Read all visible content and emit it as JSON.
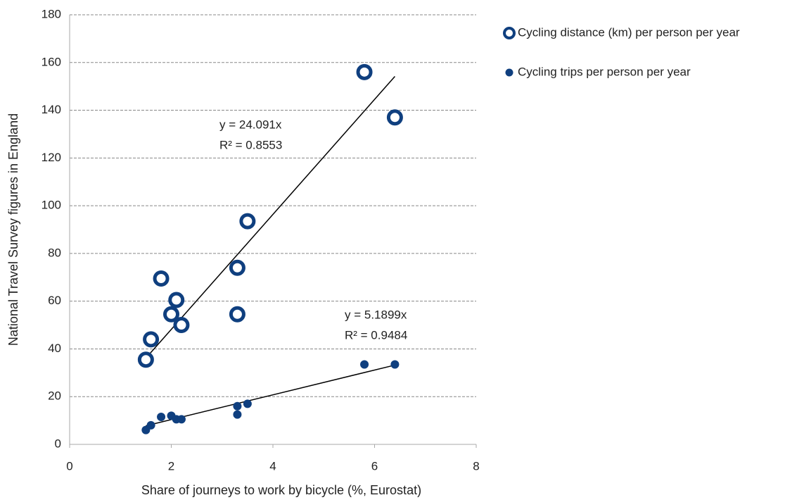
{
  "chart_data": {
    "type": "scatter",
    "x_label": "Share of journeys to work by bicycle (%, Eurostat)",
    "y_label": "National Travel Survey figures in England",
    "xlim": [
      0,
      8
    ],
    "xticks": [
      0,
      2,
      4,
      6,
      8
    ],
    "ylim": [
      0,
      180
    ],
    "yticks": [
      0,
      20,
      40,
      60,
      80,
      100,
      120,
      140,
      160,
      180
    ],
    "grid": true,
    "legend": "right",
    "series": [
      {
        "name": "Cycling distance (km) per person per year",
        "color": "#0f3f7f",
        "marker": "ring",
        "x": [
          1.5,
          1.6,
          1.8,
          2.0,
          2.1,
          2.2,
          3.3,
          3.3,
          3.5,
          5.8,
          6.4
        ],
        "values": [
          35.5,
          44,
          69.5,
          54.5,
          60.5,
          50,
          74,
          54.5,
          93.5,
          156,
          137
        ],
        "trendline": {
          "slope": 24.091,
          "equation": "y = 24.091x",
          "r_squared": "R² = 0.8553"
        }
      },
      {
        "name": "Cycling trips per person per year",
        "color": "#0f3f7f",
        "marker": "dot",
        "x": [
          1.5,
          1.6,
          1.8,
          2.0,
          2.1,
          2.2,
          3.3,
          3.3,
          3.5,
          5.8,
          6.4
        ],
        "values": [
          6,
          8,
          11.5,
          12,
          10.5,
          10.5,
          16,
          12.5,
          17,
          33.5,
          33.5
        ],
        "trendline": {
          "slope": 5.1899,
          "equation": "y = 5.1899x",
          "r_squared": "R² = 0.9484"
        }
      }
    ]
  }
}
